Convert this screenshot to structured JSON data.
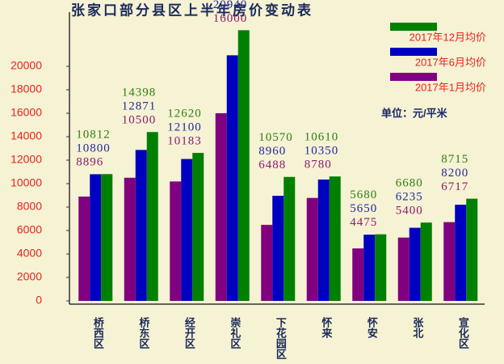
{
  "chart_data": {
    "type": "bar",
    "title": "张家口部分县区上半年房价变动表",
    "unit": "单位：元/平米",
    "categories": [
      "桥西区",
      "桥东区",
      "经开区",
      "崇礼区",
      "下花园区",
      "怀来",
      "怀安",
      "张北",
      "宣化区"
    ],
    "series": [
      {
        "name": "2017年1月均价",
        "color": "#800080",
        "values": [
          8896,
          10500,
          10183,
          16000,
          6488,
          8780,
          4475,
          5400,
          6717
        ]
      },
      {
        "name": "2017年6月均价",
        "color": "#0000c0",
        "values": [
          10800,
          12871,
          12100,
          20940,
          8960,
          10350,
          5650,
          6235,
          8200
        ]
      },
      {
        "name": "2017年12月均价",
        "color": "#008000",
        "values": [
          10812,
          14398,
          12620,
          23080,
          10570,
          10610,
          5680,
          6680,
          8715
        ]
      }
    ],
    "ylim": [
      0,
      24000
    ],
    "yticks": [
      0,
      2000,
      4000,
      6000,
      8000,
      10000,
      12000,
      14000,
      16000,
      18000,
      20000
    ]
  }
}
